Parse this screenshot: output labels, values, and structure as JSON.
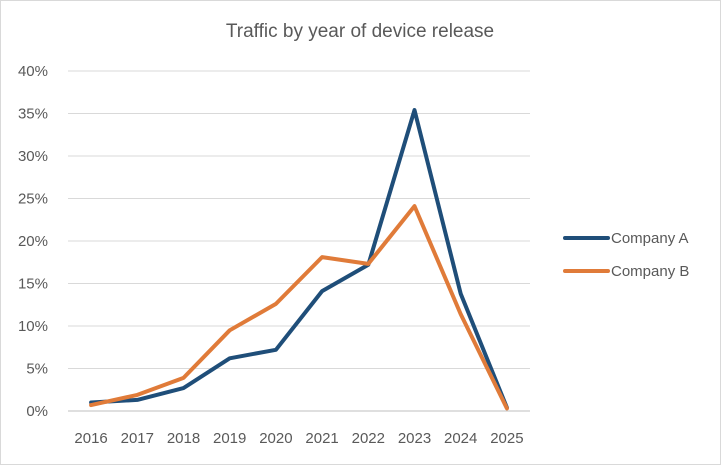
{
  "chart_data": {
    "type": "line",
    "title": "Traffic by year of device release",
    "xlabel": "",
    "ylabel": "",
    "x": [
      "2016",
      "2017",
      "2018",
      "2019",
      "2020",
      "2021",
      "2022",
      "2023",
      "2024",
      "2025"
    ],
    "y_ticks": [
      "0%",
      "5%",
      "10%",
      "15%",
      "20%",
      "25%",
      "30%",
      "35%",
      "40%"
    ],
    "ylim": [
      0,
      40
    ],
    "grid": true,
    "legend": "right",
    "series": [
      {
        "name": "Company A",
        "color": "#1f4e79",
        "values": [
          1.0,
          1.3,
          2.7,
          6.2,
          7.2,
          14.1,
          17.2,
          35.4,
          13.8,
          0.4
        ]
      },
      {
        "name": "Company B",
        "color": "#e07b39",
        "values": [
          0.7,
          1.9,
          3.9,
          9.5,
          12.6,
          18.1,
          17.3,
          24.1,
          11.4,
          0.3
        ]
      }
    ]
  }
}
